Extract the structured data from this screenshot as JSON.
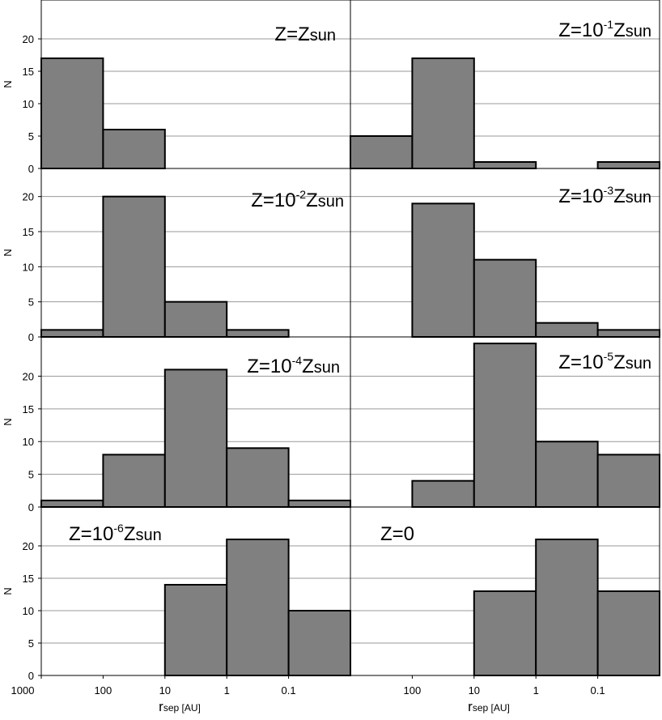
{
  "colors": {
    "bar_fill": "#808080",
    "bar_stroke": "#000000",
    "grid": "#9a9a9a",
    "frame": "#000000"
  },
  "x_tick_labels": [
    "1000",
    "100",
    "10",
    "1",
    "0.1"
  ],
  "x_axis_label": {
    "main": "r",
    "sub": "sep",
    "unit": "[AU]"
  },
  "y_axis_label": "N",
  "chart_data": [
    {
      "type": "bar",
      "panel": "top-left",
      "title": {
        "base": "Z=Z",
        "sup": "",
        "tail": "sun"
      },
      "bins": [
        "1000-100",
        "100-10",
        "10-1",
        "1-0.1",
        "<0.1"
      ],
      "values": [
        17,
        6,
        0,
        0,
        0
      ],
      "ylim": [
        0,
        26
      ],
      "yticks": [
        0,
        5,
        10,
        15,
        20
      ],
      "xscale": "log-reversed",
      "grid": true
    },
    {
      "type": "bar",
      "panel": "top-right",
      "title": {
        "base": "Z=10",
        "sup": "-1",
        "tail": "Z",
        "sub": "sun"
      },
      "bins": [
        "1000-100",
        "100-10",
        "10-1",
        "1-0.1",
        "<0.1"
      ],
      "values": [
        5,
        17,
        1,
        0,
        1
      ],
      "ylim": [
        0,
        26
      ],
      "yticks": [
        0,
        5,
        10,
        15,
        20
      ],
      "xscale": "log-reversed",
      "grid": true
    },
    {
      "type": "bar",
      "panel": "row2-left",
      "title": {
        "base": "Z=10",
        "sup": "-2",
        "tail": "Z",
        "sub": "sun"
      },
      "bins": [
        "1000-100",
        "100-10",
        "10-1",
        "1-0.1",
        "<0.1"
      ],
      "values": [
        1,
        20,
        5,
        1,
        0
      ],
      "ylim": [
        0,
        24
      ],
      "yticks": [
        0,
        5,
        10,
        15,
        20
      ],
      "xscale": "log-reversed",
      "grid": true
    },
    {
      "type": "bar",
      "panel": "row2-right",
      "title": {
        "base": "Z=10",
        "sup": "-3",
        "tail": "Z",
        "sub": "sun"
      },
      "bins": [
        "1000-100",
        "100-10",
        "10-1",
        "1-0.1",
        "<0.1"
      ],
      "values": [
        0,
        19,
        11,
        2,
        1
      ],
      "ylim": [
        0,
        24
      ],
      "yticks": [
        0,
        5,
        10,
        15,
        20
      ],
      "xscale": "log-reversed",
      "grid": true
    },
    {
      "type": "bar",
      "panel": "row3-left",
      "title": {
        "base": "Z=10",
        "sup": "-4",
        "tail": "Z",
        "sub": "sun"
      },
      "bins": [
        "1000-100",
        "100-10",
        "10-1",
        "1-0.1",
        "<0.1"
      ],
      "values": [
        1,
        8,
        21,
        9,
        1
      ],
      "ylim": [
        0,
        26
      ],
      "yticks": [
        0,
        5,
        10,
        15,
        20
      ],
      "xscale": "log-reversed",
      "grid": true
    },
    {
      "type": "bar",
      "panel": "row3-right",
      "title": {
        "base": "Z=10",
        "sup": "-5",
        "tail": "Z",
        "sub": "sun"
      },
      "bins": [
        "1000-100",
        "100-10",
        "10-1",
        "1-0.1",
        "<0.1"
      ],
      "values": [
        0,
        4,
        25,
        10,
        8
      ],
      "ylim": [
        0,
        26
      ],
      "yticks": [
        0,
        5,
        10,
        15,
        20
      ],
      "xscale": "log-reversed",
      "grid": true
    },
    {
      "type": "bar",
      "panel": "bottom-left",
      "title": {
        "base": "Z=10",
        "sup": "-6",
        "tail": "Z",
        "sub": "sun"
      },
      "bins": [
        "1000-100",
        "100-10",
        "10-1",
        "1-0.1",
        "<0.1"
      ],
      "values": [
        0,
        0,
        14,
        21,
        10
      ],
      "ylim": [
        0,
        26
      ],
      "yticks": [
        0,
        5,
        10,
        15,
        20
      ],
      "xscale": "log-reversed",
      "grid": true
    },
    {
      "type": "bar",
      "panel": "bottom-right",
      "title": {
        "base": "Z=0",
        "sup": "",
        "tail": ""
      },
      "bins": [
        "1000-100",
        "100-10",
        "10-1",
        "1-0.1",
        "<0.1"
      ],
      "values": [
        0,
        0,
        13,
        21,
        13
      ],
      "ylim": [
        0,
        26
      ],
      "yticks": [
        0,
        5,
        10,
        15,
        20
      ],
      "xscale": "log-reversed",
      "grid": true
    }
  ]
}
